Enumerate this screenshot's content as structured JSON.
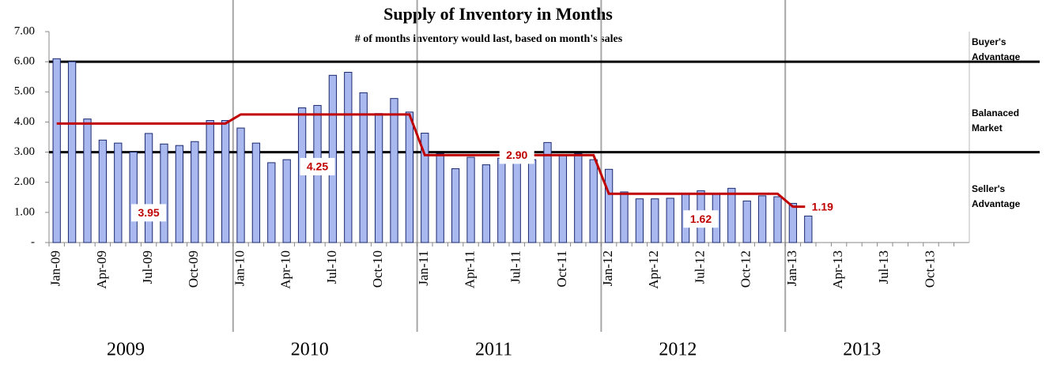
{
  "chart_data": {
    "type": "bar",
    "title": "Supply of Inventory in Months",
    "subtitle": "# of months inventory would last, based on month's sales",
    "categories": [
      "Jan-09",
      null,
      null,
      "Apr-09",
      null,
      null,
      "Jul-09",
      null,
      null,
      "Oct-09",
      null,
      null,
      "Jan-10",
      null,
      null,
      "Apr-10",
      null,
      null,
      "Jul-10",
      null,
      null,
      "Oct-10",
      null,
      null,
      "Jan-11",
      null,
      null,
      "Apr-11",
      null,
      null,
      "Jul-11",
      null,
      null,
      "Oct-11",
      null,
      null,
      "Jan-12",
      null,
      null,
      "Apr-12",
      null,
      null,
      "Jul-12",
      null,
      null,
      "Oct-12",
      null,
      null,
      "Jan-13",
      null,
      null,
      "Apr-13",
      null,
      null,
      "Jul-13",
      null,
      null,
      "Oct-13",
      null,
      null
    ],
    "series": [
      {
        "type": "bar",
        "color": "#a9b8ee",
        "edge_color": "#1c2a70",
        "values": [
          6.1,
          6.0,
          4.1,
          3.4,
          3.3,
          3.0,
          3.62,
          3.27,
          3.22,
          3.35,
          4.05,
          4.05,
          3.8,
          3.3,
          2.65,
          2.75,
          4.47,
          4.55,
          5.55,
          5.65,
          4.97,
          4.28,
          4.78,
          4.33,
          3.63,
          2.95,
          2.45,
          2.83,
          2.58,
          2.8,
          3.05,
          2.75,
          3.32,
          2.9,
          2.95,
          2.75,
          2.43,
          1.68,
          1.45,
          1.45,
          1.47,
          1.63,
          1.72,
          1.62,
          1.8,
          1.38,
          1.55,
          1.52,
          1.3,
          0.88,
          null,
          null,
          null,
          null,
          null,
          null,
          null,
          null,
          null,
          null
        ]
      },
      {
        "type": "line",
        "color": "#c00000",
        "values": [
          3.95,
          3.95,
          3.95,
          3.95,
          3.95,
          3.95,
          3.95,
          3.95,
          3.95,
          3.95,
          3.95,
          3.95,
          4.25,
          4.25,
          4.25,
          4.25,
          4.25,
          4.25,
          4.25,
          4.25,
          4.25,
          4.25,
          4.25,
          4.25,
          2.9,
          2.9,
          2.9,
          2.9,
          2.9,
          2.9,
          2.9,
          2.9,
          2.9,
          2.9,
          2.9,
          2.9,
          1.62,
          1.62,
          1.62,
          1.62,
          1.62,
          1.62,
          1.62,
          1.62,
          1.62,
          1.62,
          1.62,
          1.62,
          1.19,
          1.19,
          null,
          null,
          null,
          null,
          null,
          null,
          null,
          null,
          null,
          null
        ],
        "value_labels": [
          null,
          null,
          null,
          null,
          null,
          null,
          "3.95",
          null,
          null,
          null,
          null,
          null,
          null,
          null,
          null,
          null,
          null,
          "4.25",
          null,
          null,
          null,
          null,
          null,
          null,
          null,
          null,
          null,
          null,
          null,
          null,
          "2.90",
          null,
          null,
          null,
          null,
          null,
          null,
          null,
          null,
          null,
          null,
          null,
          "1.62",
          null,
          null,
          null,
          null,
          null,
          null,
          "1.19",
          null,
          null,
          null,
          null,
          null,
          null,
          null,
          null,
          null,
          null
        ]
      }
    ],
    "reference_lines": [
      6,
      3
    ],
    "zone_labels": [
      "Buyer's Advantage",
      "Balanaced Market",
      "Seller's Advantage"
    ],
    "year_labels": [
      "2009",
      "2010",
      "2011",
      "2012",
      "2013"
    ],
    "ylim": [
      0,
      7
    ],
    "yticks": [
      {
        "value": 0,
        "label": "-"
      },
      {
        "value": 1,
        "label": "1.00"
      },
      {
        "value": 2,
        "label": "2.00"
      },
      {
        "value": 3,
        "label": "3.00"
      },
      {
        "value": 4,
        "label": "4.00"
      },
      {
        "value": 5,
        "label": "5.00"
      },
      {
        "value": 6,
        "label": "6.00"
      },
      {
        "value": 7,
        "label": "7.00"
      }
    ]
  }
}
